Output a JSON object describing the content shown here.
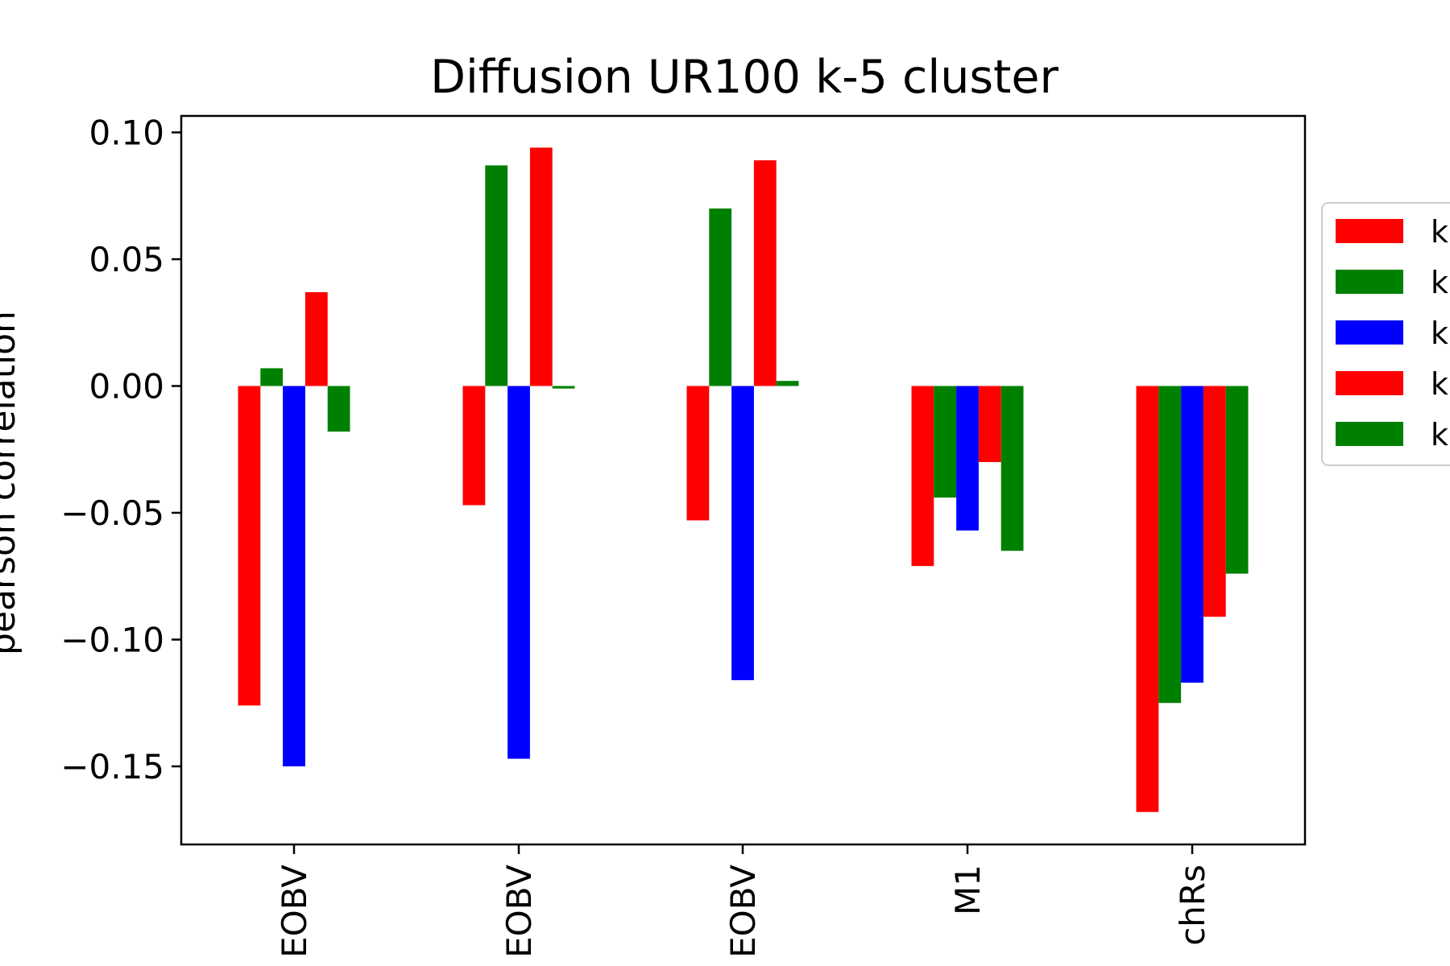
{
  "chart_data": {
    "type": "bar",
    "title": "Diffusion UR100 k-5 cluster",
    "ylabel": "pearson correlation",
    "xlabel": "",
    "categories": [
      "EOBV",
      "EOBV",
      "EOBV",
      "M1",
      "chRs"
    ],
    "ylim": [
      -0.18,
      0.105
    ],
    "yticks": [
      0.1,
      0.05,
      0.0,
      -0.05,
      -0.1,
      -0.15
    ],
    "ytick_labels": [
      "0.10",
      "0.05",
      "0.00",
      "−0.05",
      "−0.10",
      "−0.15"
    ],
    "grid": false,
    "legend_position": "right",
    "series": [
      {
        "name": "k",
        "color": "#ff0000",
        "values": [
          -0.126,
          -0.047,
          -0.053,
          -0.071,
          -0.168
        ]
      },
      {
        "name": "k",
        "color": "#008000",
        "values": [
          0.007,
          0.087,
          0.07,
          -0.044,
          -0.125
        ]
      },
      {
        "name": "k",
        "color": "#0000ff",
        "values": [
          -0.15,
          -0.147,
          -0.116,
          -0.057,
          -0.117
        ]
      },
      {
        "name": "k",
        "color": "#ff0000",
        "values": [
          0.037,
          0.094,
          0.089,
          -0.03,
          -0.091
        ]
      },
      {
        "name": "k",
        "color": "#008000",
        "values": [
          -0.018,
          -0.001,
          0.002,
          -0.065,
          -0.074
        ]
      }
    ]
  }
}
